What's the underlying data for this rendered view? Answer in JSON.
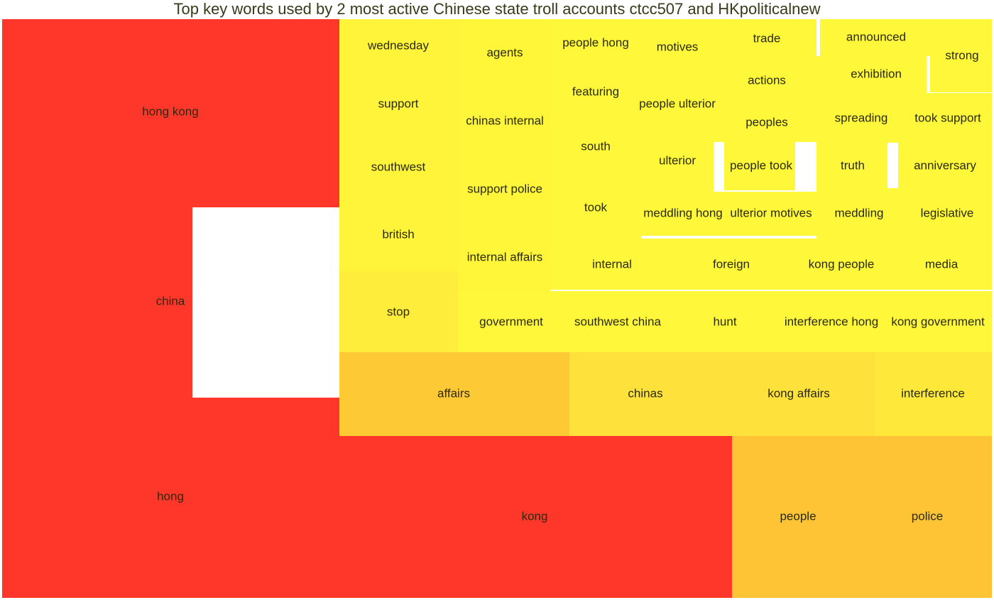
{
  "chart_data": {
    "type": "treemap",
    "title": "Top key words used by 2 most active Chinese state troll accounts ctcc507 and HKpoliticalnew",
    "color_scale": {
      "high": "#ff3a2a",
      "mid": "#fec436",
      "low": "#fef93a"
    },
    "tiles": [
      {
        "label": "hong kong",
        "color": "#ff372a"
      },
      {
        "label": "china",
        "color": "#ff372a"
      },
      {
        "label": "hong",
        "color": "#ff372a"
      },
      {
        "label": "kong",
        "color": "#ff372a"
      },
      {
        "label": "people",
        "color": "#fec436"
      },
      {
        "label": "police",
        "color": "#fec436"
      },
      {
        "label": "affairs",
        "color": "#fdc935"
      },
      {
        "label": "chinas",
        "color": "#fee13a"
      },
      {
        "label": "kong affairs",
        "color": "#fee13a"
      },
      {
        "label": "interference",
        "color": "#fee83a"
      },
      {
        "label": "wednesday",
        "color": "#fff43a"
      },
      {
        "label": "support",
        "color": "#fff43a"
      },
      {
        "label": "southwest",
        "color": "#fff43a"
      },
      {
        "label": "british",
        "color": "#fff43a"
      },
      {
        "label": "stop",
        "color": "#feed3a"
      },
      {
        "label": "agents",
        "color": "#fff63a"
      },
      {
        "label": "chinas internal",
        "color": "#fff63a"
      },
      {
        "label": "support police",
        "color": "#fff63a"
      },
      {
        "label": "internal affairs",
        "color": "#fff63a"
      },
      {
        "label": "government",
        "color": "#fff83a"
      },
      {
        "label": "people hong",
        "color": "#fff83a"
      },
      {
        "label": "featuring",
        "color": "#fff83a"
      },
      {
        "label": "south",
        "color": "#fff83a"
      },
      {
        "label": "took",
        "color": "#fff83a"
      },
      {
        "label": "motives",
        "color": "#fff83a"
      },
      {
        "label": "people ulterior",
        "color": "#fff83a"
      },
      {
        "label": "ulterior",
        "color": "#fff83a"
      },
      {
        "label": "meddling hong",
        "color": "#fff83a"
      },
      {
        "label": "trade",
        "color": "#fff83a"
      },
      {
        "label": "actions",
        "color": "#fff83a"
      },
      {
        "label": "peoples",
        "color": "#fff83a"
      },
      {
        "label": "people took",
        "color": "#fff83a"
      },
      {
        "label": "ulterior motives",
        "color": "#fff83a"
      },
      {
        "label": "announced",
        "color": "#fff83a"
      },
      {
        "label": "exhibition",
        "color": "#fff83a"
      },
      {
        "label": "spreading",
        "color": "#fff83a"
      },
      {
        "label": "truth",
        "color": "#fff83a"
      },
      {
        "label": "meddling",
        "color": "#fff83a"
      },
      {
        "label": "strong",
        "color": "#fff83a"
      },
      {
        "label": "took support",
        "color": "#fff83a"
      },
      {
        "label": "anniversary",
        "color": "#fff83a"
      },
      {
        "label": "legislative",
        "color": "#fff83a"
      },
      {
        "label": "internal",
        "color": "#fff83a"
      },
      {
        "label": "foreign",
        "color": "#fff83a"
      },
      {
        "label": "kong people",
        "color": "#fff83a"
      },
      {
        "label": "media",
        "color": "#fff83a"
      },
      {
        "label": "southwest china",
        "color": "#fff83a"
      },
      {
        "label": "hunt",
        "color": "#fff83a"
      },
      {
        "label": "interference hong",
        "color": "#fff83a"
      },
      {
        "label": "kong government",
        "color": "#fff83a"
      }
    ]
  }
}
